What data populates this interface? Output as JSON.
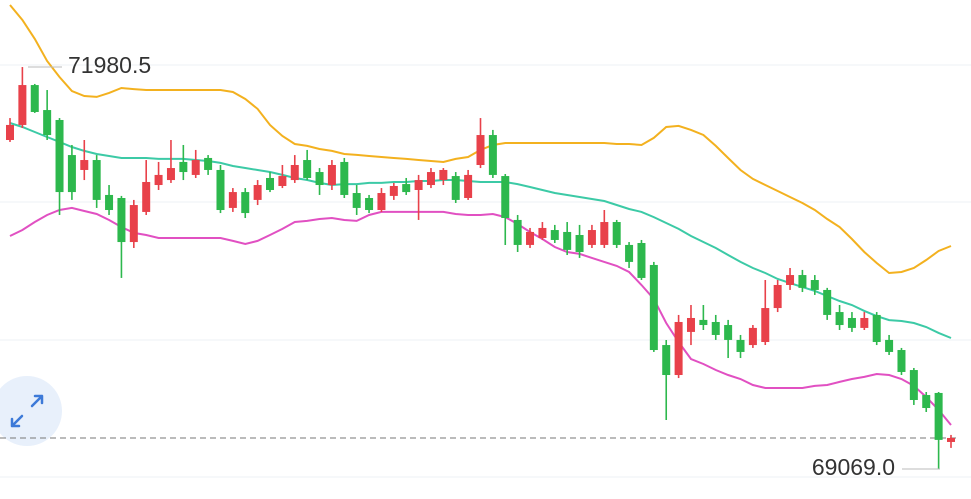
{
  "chart_data": {
    "type": "candlestick",
    "ylim": [
      68852,
      72466
    ],
    "up_color": "#e8414a",
    "down_color": "#2db84d",
    "open": [
      71452,
      71561,
      71850,
      71669,
      71597,
      71343,
      71235,
      71307,
      71054,
      71032,
      70713,
      70931,
      71126,
      71162,
      71293,
      71199,
      71322,
      71235,
      70960,
      71075,
      71018,
      71177,
      71119,
      71162,
      71307,
      71220,
      71126,
      71293,
      71068,
      71032,
      70945,
      71047,
      71133,
      71090,
      71126,
      71162,
      71191,
      71032,
      71271,
      71488,
      71191,
      70873,
      70692,
      70742,
      70800,
      70786,
      70764,
      70692,
      70692,
      70858,
      70692,
      70706,
      70547,
      69967,
      69750,
      70062,
      70149,
      70134,
      70112,
      70004,
      69967,
      69989,
      70235,
      70402,
      70474,
      70438,
      70366,
      70206,
      70163,
      70091,
      70185,
      70004,
      69931,
      69786,
      69605,
      69620,
      69265
    ],
    "high": [
      71611,
      71980.5,
      71858,
      71814,
      71611,
      71416,
      71452,
      71343,
      71126,
      71047,
      71018,
      71307,
      71293,
      71452,
      71416,
      71380,
      71343,
      71271,
      71104,
      71104,
      71162,
      71220,
      71271,
      71343,
      71380,
      71249,
      71307,
      71322,
      71126,
      71054,
      71104,
      71141,
      71177,
      71199,
      71249,
      71249,
      71220,
      71235,
      71611,
      71525,
      71206,
      70909,
      70815,
      70858,
      70837,
      70858,
      70837,
      70837,
      70945,
      70873,
      70713,
      70728,
      70569,
      70004,
      70185,
      70257,
      70257,
      70185,
      70149,
      70040,
      70112,
      70438,
      70438,
      70525,
      70511,
      70474,
      70381,
      70257,
      70206,
      70206,
      70206,
      70040,
      69946,
      69801,
      69627,
      69627,
      69316
    ],
    "low": [
      71438,
      71539,
      71648,
      71452,
      70909,
      71018,
      71162,
      70960,
      70909,
      70453,
      70670,
      70909,
      71090,
      71141,
      71162,
      71177,
      71199,
      70923,
      70931,
      70887,
      70981,
      71075,
      71104,
      71141,
      71162,
      71054,
      71090,
      71032,
      70909,
      70923,
      70931,
      71018,
      71054,
      70873,
      71104,
      71126,
      70996,
      71018,
      71249,
      71177,
      70692,
      70641,
      70670,
      70728,
      70706,
      70619,
      70598,
      70670,
      70670,
      70670,
      70525,
      70438,
      69917,
      69424,
      69728,
      69967,
      70076,
      70004,
      69873,
      69873,
      69946,
      69967,
      70206,
      70366,
      70351,
      70330,
      70149,
      70076,
      70062,
      70076,
      69967,
      69895,
      69750,
      69533,
      69482,
      69069,
      69222
    ],
    "close": [
      71561,
      71850,
      71655,
      71488,
      71075,
      71075,
      71307,
      71018,
      70945,
      70713,
      70981,
      71148,
      71199,
      71249,
      71220,
      71307,
      71235,
      70945,
      71075,
      70923,
      71126,
      71090,
      71191,
      71271,
      71177,
      71126,
      71271,
      71054,
      70960,
      70945,
      71068,
      71119,
      71075,
      71162,
      71220,
      71235,
      71018,
      71199,
      71488,
      71199,
      70887,
      70692,
      70786,
      70815,
      70728,
      70656,
      70641,
      70800,
      70858,
      70692,
      70569,
      70453,
      69931,
      69750,
      70134,
      70163,
      70112,
      70040,
      70004,
      69917,
      70091,
      70235,
      70402,
      70474,
      70381,
      70366,
      70185,
      70112,
      70091,
      70163,
      69989,
      69917,
      69772,
      69569,
      69511,
      69280,
      69294
    ],
    "lines": [
      {
        "color": "#f3b11f",
        "values": [
          72430,
          72321,
          72184,
          72024,
          71908,
          71807,
          71771,
          71764,
          71793,
          71829,
          71821,
          71814,
          71814,
          71814,
          71814,
          71814,
          71814,
          71814,
          71800,
          71749,
          71677,
          71561,
          71481,
          71423,
          71409,
          71387,
          71373,
          71351,
          71344,
          71336,
          71329,
          71322,
          71315,
          71307,
          71300,
          71293,
          71315,
          71329,
          71380,
          71416,
          71430,
          71430,
          71430,
          71430,
          71430,
          71430,
          71430,
          71430,
          71430,
          71423,
          71423,
          71416,
          71467,
          71546,
          71554,
          71525,
          71488,
          71409,
          71322,
          71235,
          71170,
          71126,
          71083,
          71039,
          70996,
          70945,
          70880,
          70822,
          70735,
          70641,
          70561,
          70489,
          70496,
          70525,
          70583,
          70648,
          70684
        ]
      },
      {
        "color": "#3ccaa6",
        "values": [
          71575,
          71546,
          71510,
          71474,
          71438,
          71401,
          71373,
          71351,
          71336,
          71322,
          71322,
          71322,
          71315,
          71315,
          71315,
          71307,
          71300,
          71286,
          71264,
          71249,
          71235,
          71220,
          71199,
          71177,
          71162,
          71141,
          71126,
          71133,
          71133,
          71141,
          71141,
          71148,
          71148,
          71155,
          71155,
          71162,
          71162,
          71155,
          71148,
          71148,
          71148,
          71133,
          71112,
          71090,
          71068,
          71054,
          71039,
          71025,
          71010,
          70981,
          70952,
          70931,
          70894,
          70851,
          70808,
          70757,
          70713,
          70670,
          70619,
          70569,
          70525,
          70489,
          70445,
          70416,
          70387,
          70359,
          70322,
          70286,
          70257,
          70214,
          70177,
          70148,
          70141,
          70127,
          70098,
          70055,
          70018
        ]
      },
      {
        "color": "#e150c2",
        "values": [
          70757,
          70800,
          70858,
          70909,
          70945,
          70960,
          70938,
          70916,
          70873,
          70822,
          70779,
          70764,
          70742,
          70742,
          70742,
          70742,
          70742,
          70742,
          70721,
          70699,
          70721,
          70764,
          70808,
          70858,
          70866,
          70880,
          70887,
          70873,
          70866,
          70909,
          70931,
          70931,
          70931,
          70931,
          70931,
          70931,
          70916,
          70909,
          70909,
          70916,
          70894,
          70844,
          70786,
          70735,
          70677,
          70641,
          70627,
          70598,
          70569,
          70540,
          70496,
          70402,
          70301,
          70127,
          69989,
          69866,
          69830,
          69786,
          69750,
          69721,
          69678,
          69656,
          69656,
          69656,
          69656,
          69671,
          69678,
          69700,
          69721,
          69736,
          69757,
          69750,
          69721,
          69671,
          69591,
          69497,
          69388
        ]
      }
    ],
    "price_labels": [
      {
        "value": 71980.5,
        "label": "71980.5"
      },
      {
        "value": 69069,
        "label": "69069.0"
      }
    ]
  }
}
